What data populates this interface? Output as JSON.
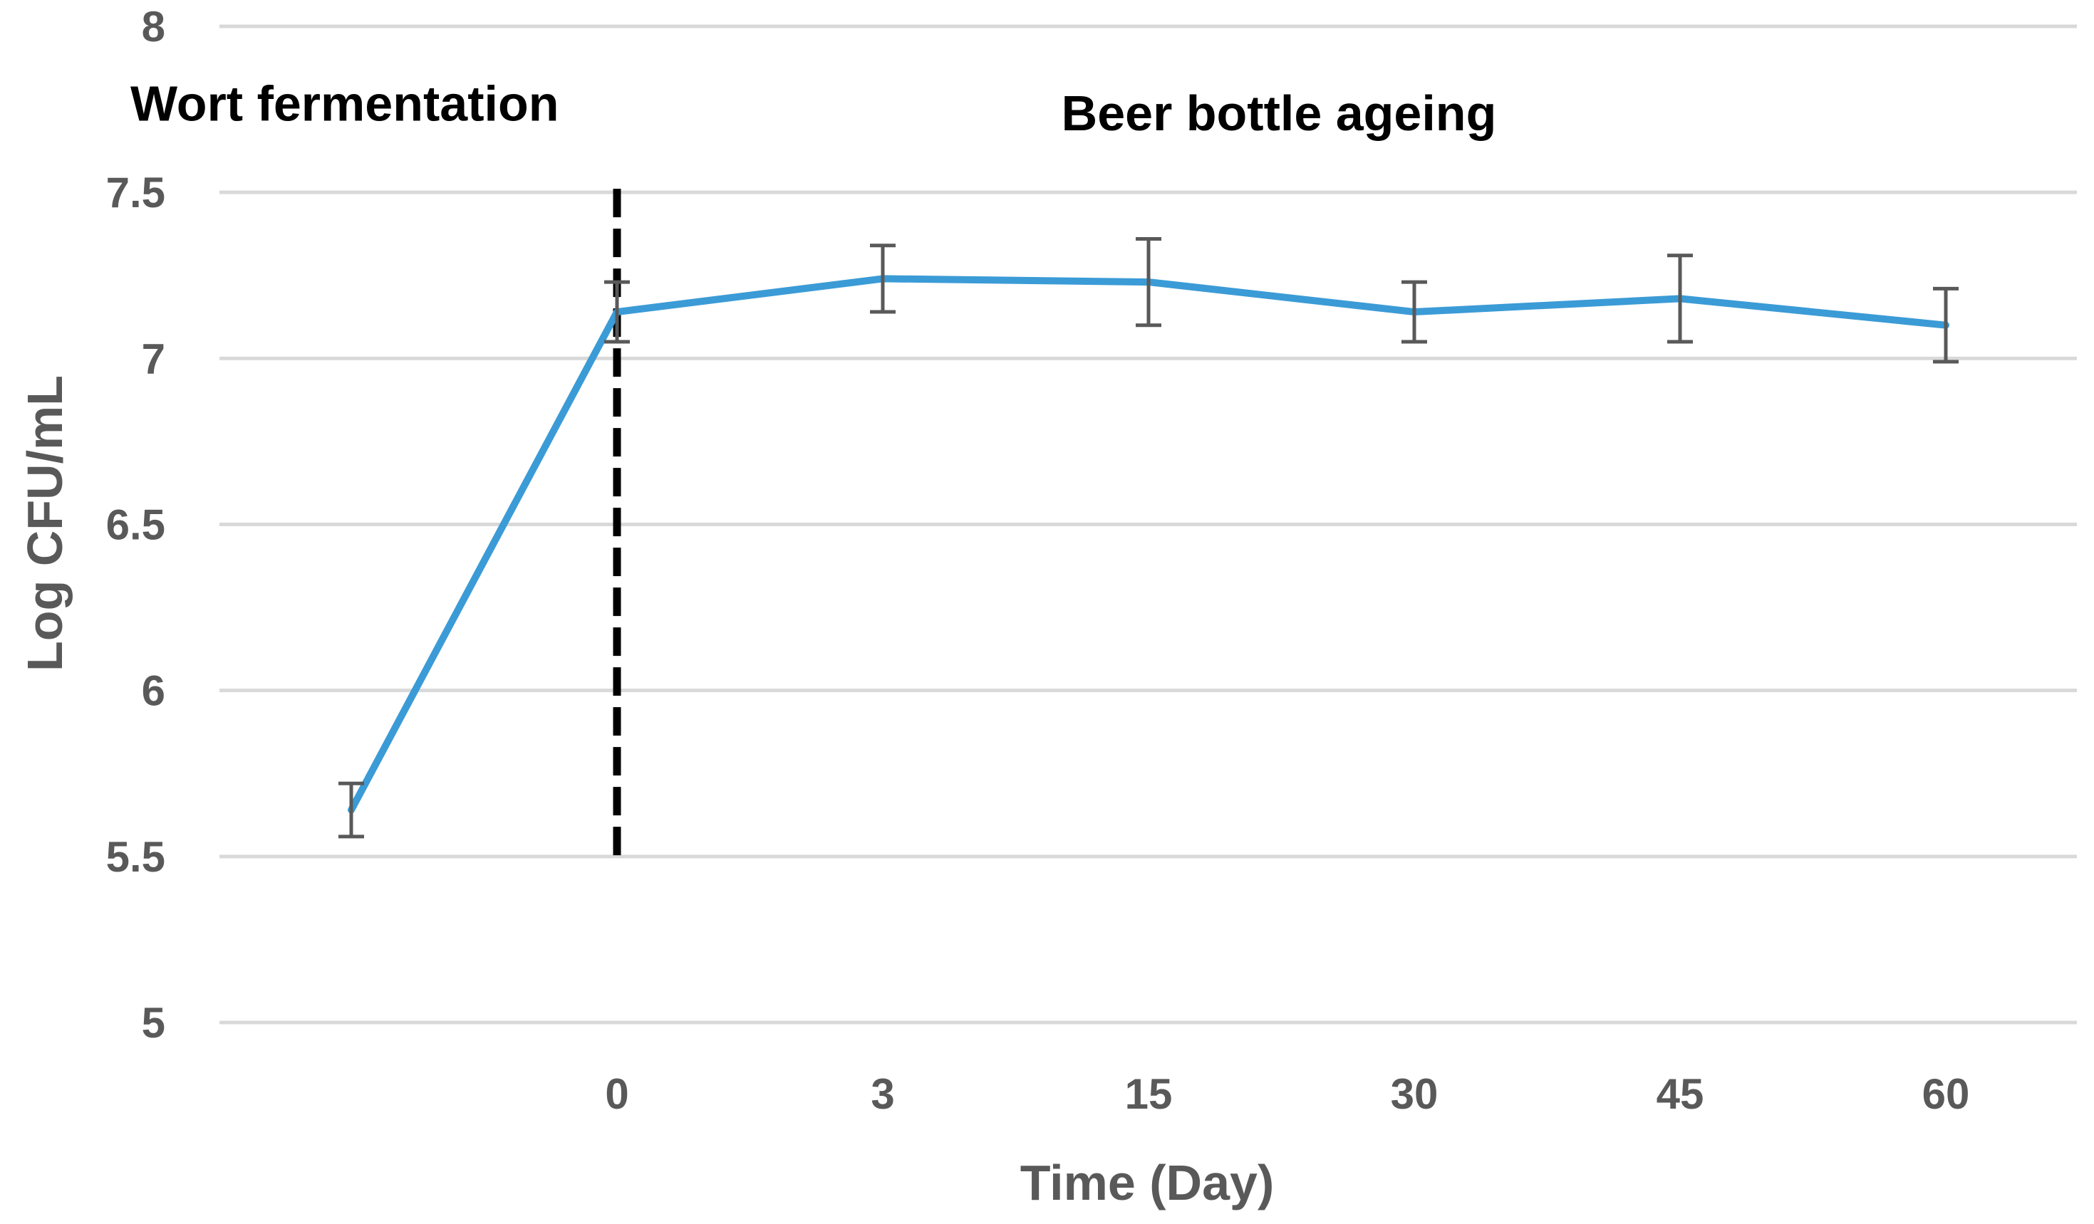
{
  "chart_data": {
    "type": "line",
    "title": "",
    "xlabel": "Time (Day)",
    "ylabel": "Log CFU/mL",
    "ylim": [
      5,
      8
    ],
    "yticks": [
      "5",
      "5.5",
      "6",
      "6.5",
      "7",
      "7.5",
      "8"
    ],
    "grid": true,
    "categories": [
      "",
      "0",
      "3",
      "15",
      "30",
      "45",
      "60"
    ],
    "series": [
      {
        "name": "Log CFU/mL",
        "color": "#3b9bd6",
        "values": [
          5.64,
          7.14,
          7.24,
          7.23,
          7.14,
          7.18,
          7.1
        ],
        "error": [
          0.08,
          0.09,
          0.1,
          0.13,
          0.09,
          0.13,
          0.11
        ]
      }
    ],
    "divider": {
      "category": "0",
      "y_range": [
        5.5,
        7.5
      ],
      "style": "dashed"
    },
    "annotations": [
      {
        "text": "Wort fermentation",
        "region": "before-divider",
        "y": 7.77
      },
      {
        "text": "Beer bottle ageing",
        "region": "after-divider",
        "y": 7.74
      }
    ]
  }
}
